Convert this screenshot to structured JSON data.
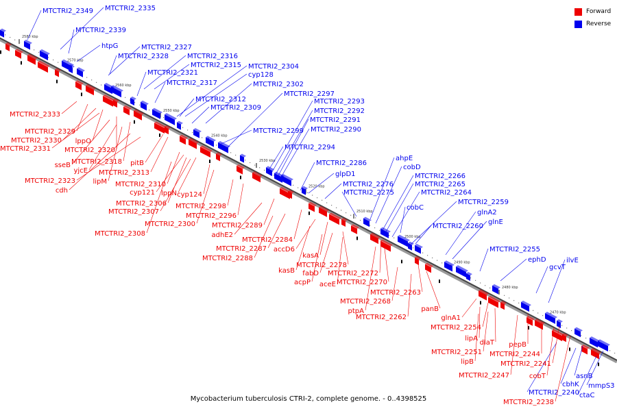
{
  "legend": {
    "forward": {
      "label": "Forward",
      "color": "#ee0000"
    },
    "reverse": {
      "label": "Reverse",
      "color": "#0000ee"
    }
  },
  "caption": "Mycobacterium tuberculosis CTRI-2, complete genome. - 0..4398525",
  "ticks": [
    "2580 kbp",
    "2570 kbp",
    "2560 kbp",
    "2550 kbp",
    "2540 kbp",
    "2530 kbp",
    "2520 kbp",
    "2510 kbp",
    "2500 kbp",
    "2490 kbp",
    "2480 kbp",
    "2470 kbp"
  ],
  "reverse_genes": [
    "MTCTRI2_2349",
    "MTCTRI2_2335",
    "MTCTRI2_2339",
    "htpG",
    "MTCTRI2_2327",
    "MTCTRI2_2328",
    "MTCTRI2_2316",
    "MTCTRI2_2315",
    "MTCTRI2_2321",
    "MTCTRI2_2304",
    "cyp128",
    "MTCTRI2_2317",
    "MTCTRI2_2302",
    "MTCTRI2_2297",
    "MTCTRI2_2312",
    "MTCTRI2_2293",
    "MTCTRI2_2309",
    "MTCTRI2_2292",
    "MTCTRI2_2291",
    "MTCTRI2_2290",
    "MTCTRI2_2299",
    "MTCTRI2_2294",
    "ahpE",
    "MTCTRI2_2286",
    "cobD",
    "glpD1",
    "MTCTRI2_2266",
    "MTCTRI2_2276",
    "MTCTRI2_2265",
    "MTCTRI2_2275",
    "MTCTRI2_2264",
    "MTCTRI2_2259",
    "cobC",
    "glnA2",
    "glnE",
    "MTCTRI2_2260",
    "MTCTRI2_2255",
    "ephD",
    "ilvE",
    "gcvT",
    "cbhK",
    "asnB",
    "mmpS3",
    "MTCTRI2_2240",
    "ctaC"
  ],
  "forward_genes": [
    "MTCTRI2_2333",
    "MTCTRI2_2329",
    "MTCTRI2_2330",
    "lppO",
    "MTCTRI2_2331",
    "MTCTRI2_2320",
    "sseB",
    "MTCTRI2_2318",
    "pitB",
    "yjcE",
    "MTCTRI2_2313",
    "lipM",
    "MTCTRI2_2323",
    "cdh",
    "MTCTRI2_2310",
    "cyp121",
    "lppN",
    "cyp124",
    "MTCTRI2_2306",
    "MTCTRI2_2307",
    "MTCTRI2_2298",
    "MTCTRI2_2296",
    "MTCTRI2_2300",
    "MTCTRI2_2289",
    "MTCTRI2_2308",
    "adhE2",
    "MTCTRI2_2284",
    "MTCTRI2_2287",
    "accD6",
    "MTCTRI2_2288",
    "kasA",
    "MTCTRI2_2278",
    "kasB",
    "fabD",
    "acpP",
    "aceE",
    "MTCTRI2_2272",
    "MTCTRI2_2270",
    "MTCTRI2_2263",
    "MTCTRI2_2268",
    "panB",
    "ptpA",
    "MTCTRI2_2262",
    "glnA1",
    "MTCTRI2_2254",
    "lipA",
    "dlaT",
    "pepB",
    "MTCTRI2_2251",
    "lipB",
    "MTCTRI2_2244",
    "MTCTRI2_2241",
    "MTCTRI2_2247",
    "cobT",
    "MTCTRI2_2238"
  ]
}
